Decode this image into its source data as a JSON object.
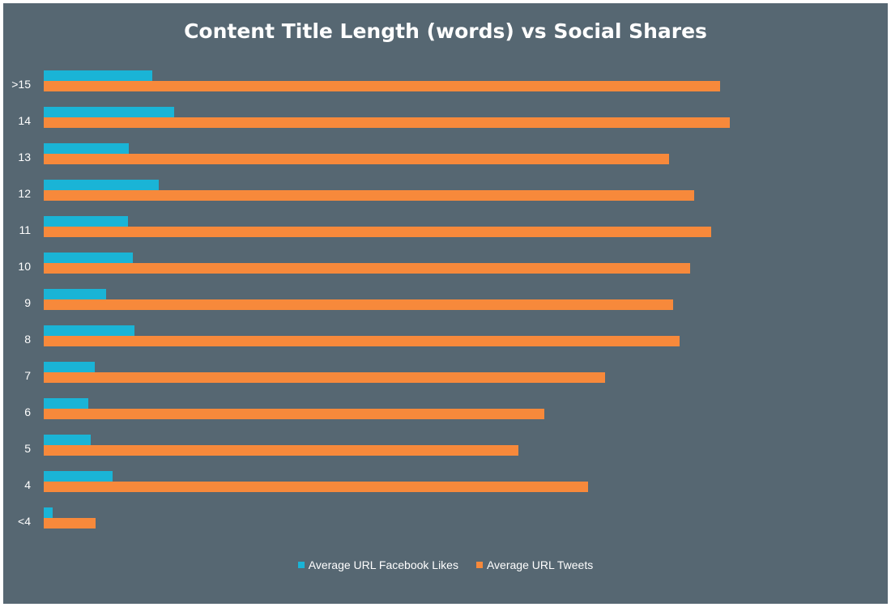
{
  "chart_data": {
    "type": "bar",
    "orientation": "horizontal",
    "title": "Content Title Length (words) vs Social Shares",
    "xlabel": "",
    "ylabel": "",
    "categories": [
      ">15",
      "14",
      "13",
      "12",
      "11",
      "10",
      "9",
      "8",
      "7",
      "6",
      "5",
      "4",
      "<4"
    ],
    "series": [
      {
        "name": "Average URL Facebook Likes",
        "color": "#1ab4d6",
        "values": [
          134,
          161,
          105,
          142,
          104,
          110,
          77,
          112,
          63,
          55,
          58,
          85,
          11
        ]
      },
      {
        "name": "Average URL Tweets",
        "color": "#f7893b",
        "values": [
          835,
          847,
          772,
          803,
          824,
          798,
          777,
          785,
          693,
          618,
          586,
          672,
          64
        ]
      }
    ],
    "xlim": [
      0,
      1000
    ],
    "grid": false,
    "legend_position": "bottom"
  }
}
